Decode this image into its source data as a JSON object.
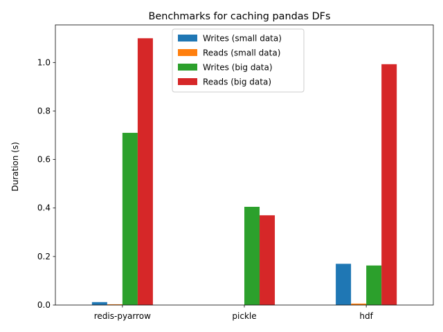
{
  "chart_data": {
    "type": "bar",
    "title": "Benchmarks for caching pandas DFs",
    "xlabel": "",
    "ylabel": "Duration (s)",
    "categories": [
      "redis-pyarrow",
      "pickle",
      "hdf"
    ],
    "series": [
      {
        "name": "Writes (small data)",
        "color": "#1f77b4",
        "values": [
          0.012,
          0.0,
          0.17
        ]
      },
      {
        "name": "Reads (small data)",
        "color": "#ff7f0e",
        "values": [
          0.003,
          0.0,
          0.006
        ]
      },
      {
        "name": "Writes (big data)",
        "color": "#2ca02c",
        "values": [
          0.71,
          0.405,
          0.163
        ]
      },
      {
        "name": "Reads (big data)",
        "color": "#d62728",
        "values": [
          1.1,
          0.37,
          0.993
        ]
      }
    ],
    "ylim": [
      0,
      1.155
    ],
    "yticks": [
      "0.0",
      "0.2",
      "0.4",
      "0.6",
      "0.8",
      "1.0"
    ],
    "legend_position": "top-center",
    "grid": false
  }
}
